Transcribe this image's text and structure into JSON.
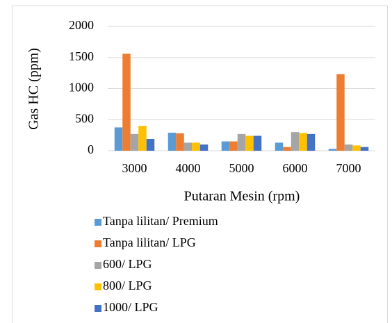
{
  "chart_data": {
    "type": "bar",
    "y_label": "Gas HC (ppm)",
    "x_label": "Putaran Mesin (rpm)",
    "categories": [
      "3000",
      "4000",
      "5000",
      "6000",
      "7000"
    ],
    "series": [
      {
        "name": "Tanpa lilitan/ Premium",
        "color": "#5b9bd5",
        "values": [
          375,
          290,
          150,
          130,
          30
        ]
      },
      {
        "name": "Tanpa lilitan/ LPG",
        "color": "#ed7d31",
        "values": [
          1560,
          280,
          150,
          60,
          1230
        ]
      },
      {
        "name": "600/ LPG",
        "color": "#a5a5a5",
        "values": [
          270,
          130,
          270,
          300,
          100
        ]
      },
      {
        "name": "800/ LPG",
        "color": "#ffc000",
        "values": [
          400,
          130,
          240,
          285,
          85
        ]
      },
      {
        "name": "1000/ LPG",
        "color": "#4472c4",
        "values": [
          190,
          100,
          240,
          270,
          60
        ]
      }
    ],
    "ylim": [
      0,
      2000
    ],
    "yticks": [
      0,
      500,
      1000,
      1500,
      2000
    ],
    "grid": true,
    "legend": "bottom"
  }
}
